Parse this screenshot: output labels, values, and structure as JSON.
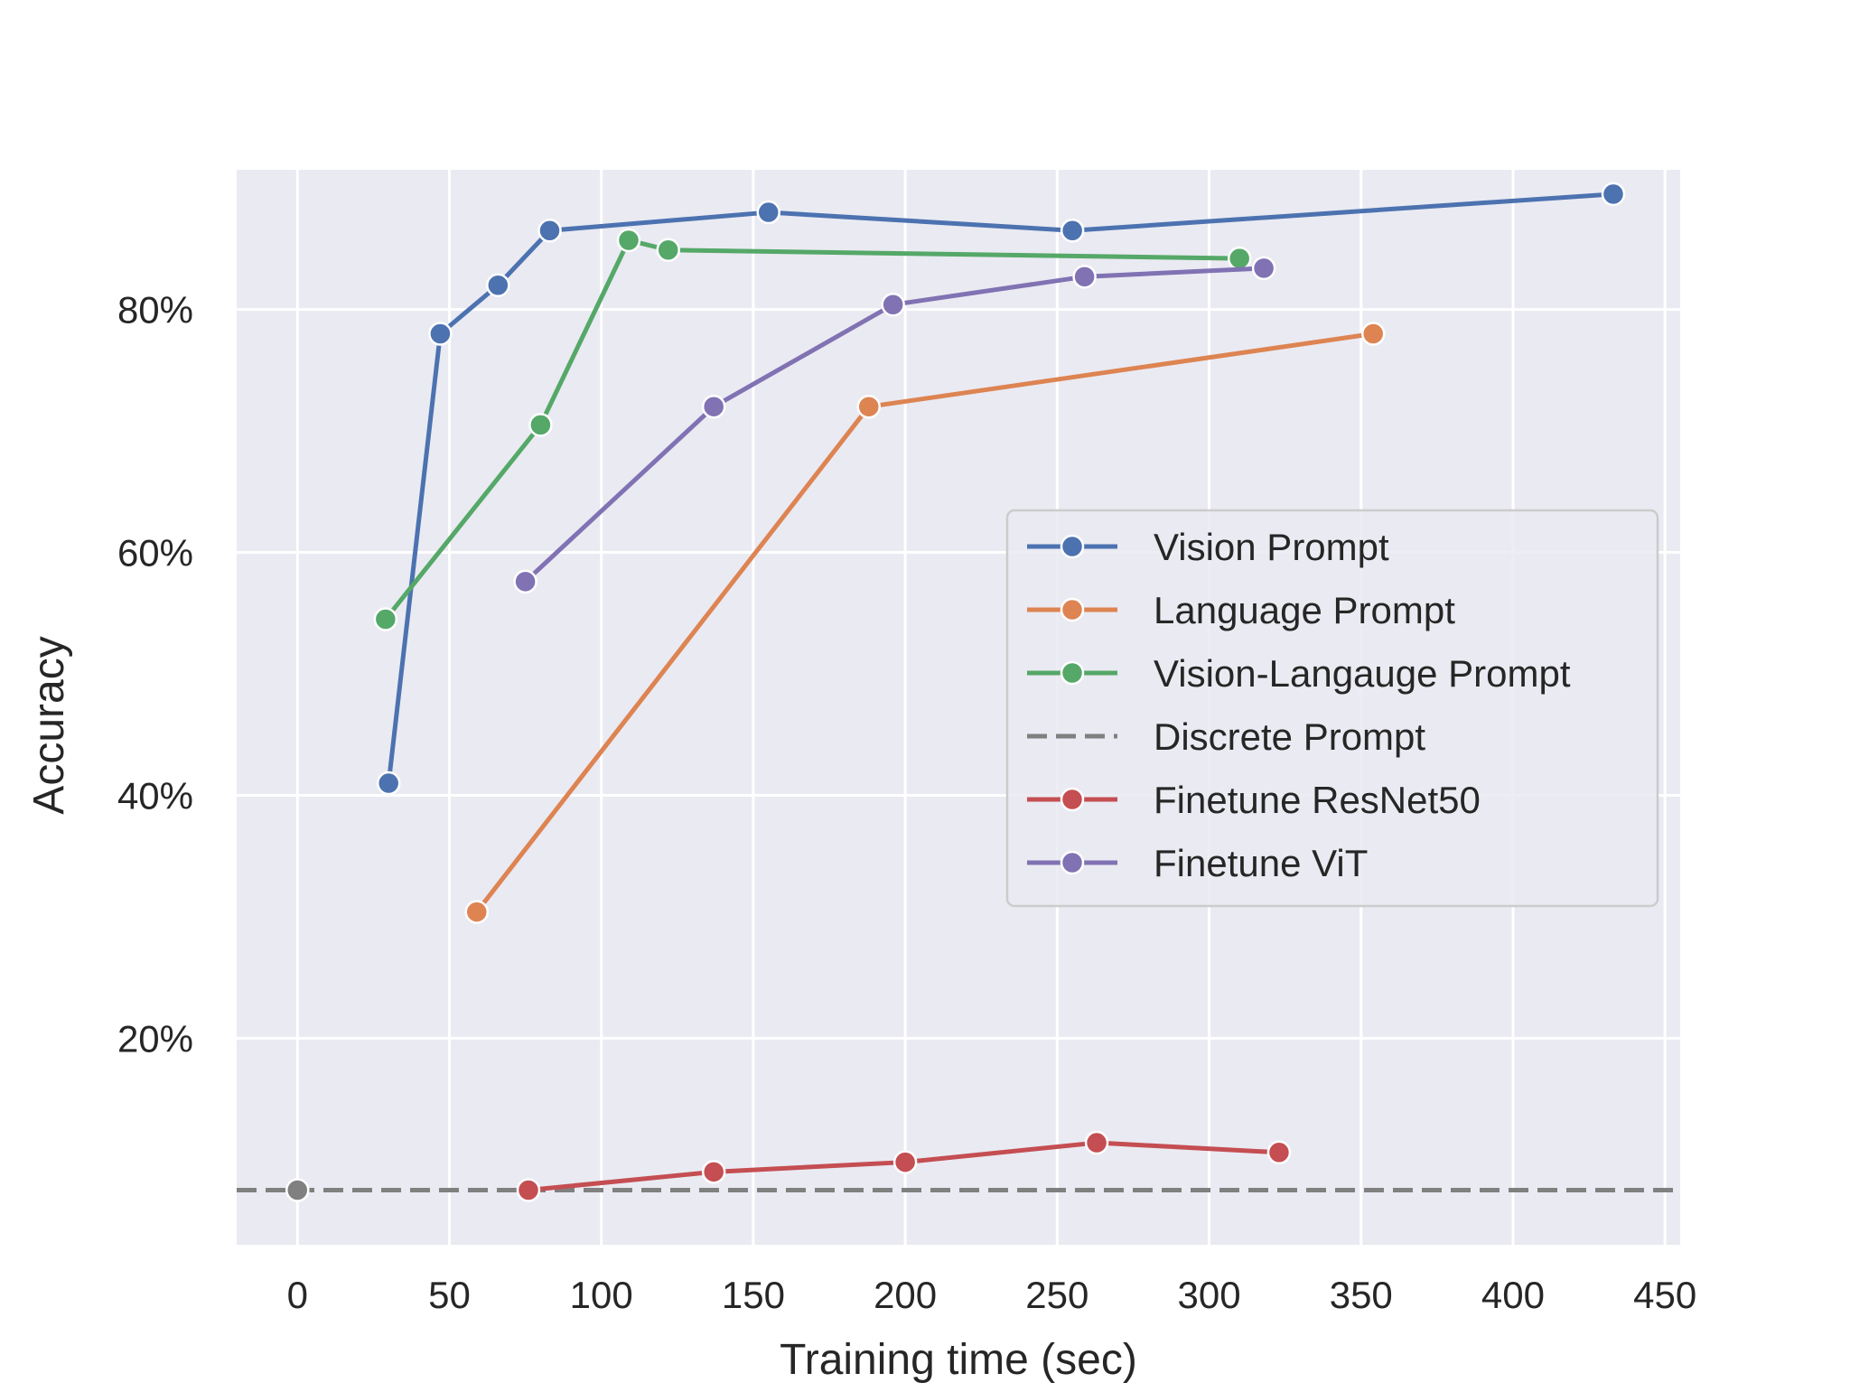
{
  "chart_data": {
    "type": "line",
    "title": "",
    "xlabel": "Training time (sec)",
    "ylabel": "Accuracy",
    "xlim": [
      -20,
      455
    ],
    "ylim": [
      3,
      91.5
    ],
    "x_ticks": [
      0,
      50,
      100,
      150,
      200,
      250,
      300,
      350,
      400,
      450
    ],
    "x_tick_labels": [
      "0",
      "50",
      "100",
      "150",
      "200",
      "250",
      "300",
      "350",
      "400",
      "450"
    ],
    "y_ticks": [
      20,
      40,
      60,
      80
    ],
    "y_tick_labels": [
      "20%",
      "40%",
      "60%",
      "80%"
    ],
    "grid": true,
    "legend_position": "center-right",
    "background_color": "#eaeaf2",
    "series": [
      {
        "name": "Vision Prompt",
        "color": "#4c72b0",
        "style": "solid",
        "marker": true,
        "points": [
          [
            30,
            41
          ],
          [
            47,
            78
          ],
          [
            66,
            82
          ],
          [
            83,
            86.5
          ],
          [
            155,
            88
          ],
          [
            255,
            86.5
          ],
          [
            433,
            89.5
          ]
        ]
      },
      {
        "name": "Language Prompt",
        "color": "#dd8452",
        "style": "solid",
        "marker": true,
        "points": [
          [
            59,
            30.4
          ],
          [
            188,
            72
          ],
          [
            354,
            78
          ]
        ]
      },
      {
        "name": "Vision-Langauge Prompt",
        "color": "#55a868",
        "style": "solid",
        "marker": true,
        "points": [
          [
            29,
            54.5
          ],
          [
            80,
            70.5
          ],
          [
            109,
            85.7
          ],
          [
            122,
            84.9
          ],
          [
            310,
            84.2
          ]
        ]
      },
      {
        "name": "Discrete Prompt",
        "color": "#808080",
        "style": "dashed",
        "marker": false,
        "points": [
          [
            -20,
            7.5
          ],
          [
            455,
            7.5
          ]
        ]
      },
      {
        "name": "Finetune ResNet50",
        "color": "#c44e52",
        "style": "solid",
        "marker": true,
        "points": [
          [
            76,
            7.5
          ],
          [
            137,
            9
          ],
          [
            200,
            9.8
          ],
          [
            263,
            11.4
          ],
          [
            323,
            10.6
          ]
        ]
      },
      {
        "name": "Finetune ViT",
        "color": "#8172b3",
        "style": "solid",
        "marker": true,
        "points": [
          [
            75,
            57.6
          ],
          [
            137,
            72
          ],
          [
            196,
            80.4
          ],
          [
            259,
            82.7
          ],
          [
            318,
            83.4
          ]
        ]
      }
    ],
    "extra_markers": [
      {
        "x": 0,
        "y": 7.5,
        "color": "#808080"
      }
    ]
  }
}
